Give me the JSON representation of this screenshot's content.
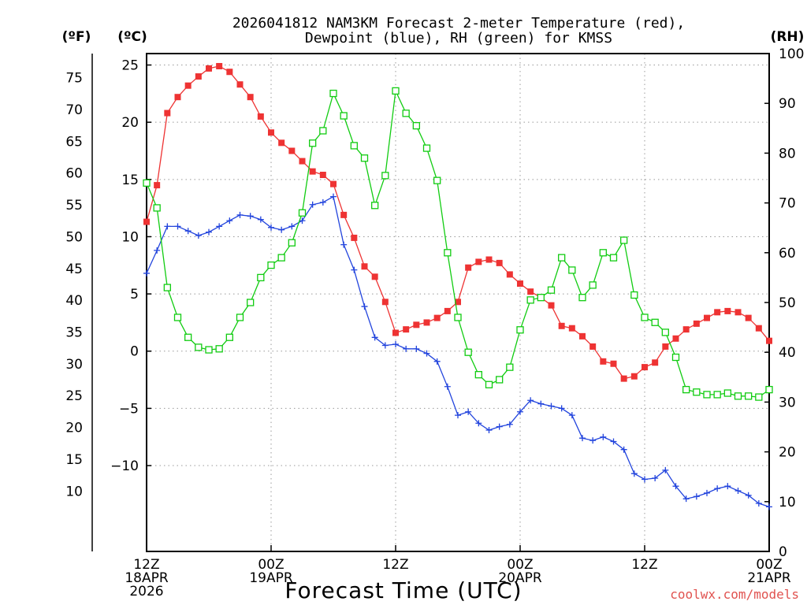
{
  "chart_data": {
    "type": "line",
    "title": [
      "2026041812 NAM3KM Forecast 2-meter Temperature (red),",
      "Dewpoint (blue), RH (green) for KMSS"
    ],
    "xlabel": "Forecast Time (UTC)",
    "credit": "coolwx.com/models",
    "units": {
      "fahrenheit": "(ºF)",
      "celsius": "(ºC)",
      "rh": "(RH)"
    },
    "x_range_hours": [
      0,
      60
    ],
    "x_ticks": [
      {
        "hour": 0,
        "lines": [
          "12Z",
          "18APR",
          "2026"
        ]
      },
      {
        "hour": 12,
        "lines": [
          "00Z",
          "19APR"
        ]
      },
      {
        "hour": 24,
        "lines": [
          "12Z"
        ]
      },
      {
        "hour": 36,
        "lines": [
          "00Z",
          "20APR"
        ]
      },
      {
        "hour": 48,
        "lines": [
          "12Z"
        ]
      },
      {
        "hour": 60,
        "lines": [
          "00Z",
          "21APR"
        ]
      }
    ],
    "celsius_axis": {
      "range": [
        -17.5,
        26
      ],
      "ticks": [
        25,
        20,
        15,
        10,
        5,
        0,
        -5,
        -10
      ],
      "tick_labels": [
        "25",
        "20",
        "15",
        "10",
        "5",
        "0",
        "−5",
        "−10"
      ]
    },
    "fahrenheit_axis": {
      "ticks": [
        75,
        70,
        65,
        60,
        55,
        50,
        45,
        40,
        35,
        30,
        25,
        20,
        15,
        10
      ]
    },
    "rh_axis": {
      "range": [
        0,
        100
      ],
      "ticks": [
        100,
        90,
        80,
        70,
        60,
        50,
        40,
        30,
        20,
        10,
        0
      ]
    },
    "series": [
      {
        "name": "2-meter Temperature",
        "unit": "C",
        "axis": "celsius",
        "color": "#ee3333",
        "marker": "filled-square",
        "x": [
          0,
          1,
          2,
          3,
          4,
          5,
          6,
          7,
          8,
          9,
          10,
          11,
          12,
          13,
          14,
          15,
          16,
          17,
          18,
          19,
          20,
          21,
          22,
          23,
          24,
          25,
          26,
          27,
          28,
          29,
          30,
          31,
          32,
          33,
          34,
          35,
          36,
          37,
          38,
          39,
          40,
          41,
          42,
          43,
          44,
          45,
          46,
          47,
          48,
          49,
          50,
          51,
          52,
          53,
          54,
          55,
          56,
          57,
          58,
          59,
          60
        ],
        "values": [
          11.3,
          14.5,
          20.8,
          22.2,
          23.2,
          24.0,
          24.7,
          24.9,
          24.4,
          23.3,
          22.2,
          20.5,
          19.1,
          18.2,
          17.5,
          16.6,
          15.7,
          15.4,
          14.6,
          11.9,
          9.9,
          7.4,
          6.5,
          4.3,
          1.6,
          1.9,
          2.3,
          2.5,
          2.9,
          3.5,
          4.3,
          7.3,
          7.8,
          8.0,
          7.7,
          6.7,
          5.9,
          5.2,
          4.7,
          4.0,
          2.2,
          2.0,
          1.3,
          0.4,
          -0.9,
          -1.1,
          -2.4,
          -2.2,
          -1.4,
          -1.0,
          0.4,
          1.1,
          1.9,
          2.4,
          2.9,
          3.4,
          3.5,
          3.4,
          2.9,
          2.0,
          0.9
        ]
      },
      {
        "name": "Dewpoint",
        "unit": "C",
        "axis": "celsius",
        "color": "#2244dd",
        "marker": "plus",
        "x": [
          0,
          1,
          2,
          3,
          4,
          5,
          6,
          7,
          8,
          9,
          10,
          11,
          12,
          13,
          14,
          15,
          16,
          17,
          18,
          19,
          20,
          21,
          22,
          23,
          24,
          25,
          26,
          27,
          28,
          29,
          30,
          31,
          32,
          33,
          34,
          35,
          36,
          37,
          38,
          39,
          40,
          41,
          42,
          43,
          44,
          45,
          46,
          47,
          48,
          49,
          50,
          51,
          52,
          53,
          54,
          55,
          56,
          57,
          58,
          59,
          60
        ],
        "values": [
          6.8,
          8.8,
          10.9,
          10.9,
          10.5,
          10.1,
          10.4,
          10.9,
          11.4,
          11.9,
          11.8,
          11.5,
          10.8,
          10.6,
          10.9,
          11.4,
          12.8,
          13.0,
          13.5,
          9.3,
          7.1,
          3.9,
          1.2,
          0.5,
          0.6,
          0.2,
          0.2,
          -0.2,
          -0.9,
          -3.1,
          -5.6,
          -5.3,
          -6.3,
          -6.9,
          -6.6,
          -6.4,
          -5.3,
          -4.3,
          -4.6,
          -4.8,
          -5.0,
          -5.6,
          -7.6,
          -7.8,
          -7.5,
          -7.9,
          -8.6,
          -10.7,
          -11.2,
          -11.1,
          -10.4,
          -11.8,
          -12.9,
          -12.7,
          -12.4,
          -12.0,
          -11.8,
          -12.2,
          -12.6,
          -13.3,
          -13.6
        ]
      },
      {
        "name": "RH",
        "unit": "%",
        "axis": "rh",
        "color": "#11cc11",
        "marker": "open-square",
        "x": [
          0,
          1,
          2,
          3,
          4,
          5,
          6,
          7,
          8,
          9,
          10,
          11,
          12,
          13,
          14,
          15,
          16,
          17,
          18,
          19,
          20,
          21,
          22,
          23,
          24,
          25,
          26,
          27,
          28,
          29,
          30,
          31,
          32,
          33,
          34,
          35,
          36,
          37,
          38,
          39,
          40,
          41,
          42,
          43,
          44,
          45,
          46,
          47,
          48,
          49,
          50,
          51,
          52,
          53,
          54,
          55,
          56,
          57,
          58,
          59,
          60
        ],
        "values": [
          74,
          69,
          53,
          47,
          43,
          41,
          40.5,
          40.7,
          43,
          47,
          50,
          55,
          57.5,
          59,
          62,
          68,
          82,
          84.5,
          92,
          87.5,
          81.5,
          79,
          69.5,
          75.5,
          92.5,
          88,
          85.5,
          81,
          74.5,
          60,
          47,
          40,
          35.5,
          33.5,
          34.5,
          37,
          44.5,
          50.5,
          51,
          52.5,
          59,
          56.5,
          51,
          53.5,
          60,
          59,
          62.5,
          51.5,
          47,
          46,
          44,
          39,
          32.5,
          32,
          31.5,
          31.5,
          31.8,
          31.2,
          31.2,
          31,
          32.5
        ]
      }
    ]
  }
}
